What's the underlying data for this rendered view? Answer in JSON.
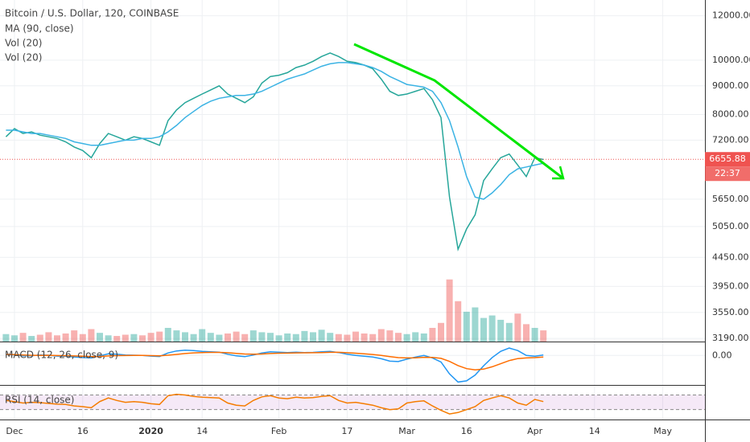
{
  "chart_data": [
    {
      "type": "line",
      "title": "Bitcoin / U.S. Dollar, 120, COINBASE",
      "log": true,
      "grid": true,
      "categories": [
        null,
        "Dec",
        null,
        null,
        null,
        null,
        null,
        null,
        null,
        "16",
        null,
        null,
        null,
        null,
        null,
        null,
        null,
        "2020",
        null,
        null,
        null,
        null,
        null,
        "14",
        null,
        null,
        null,
        null,
        null,
        null,
        null,
        null,
        "Feb",
        null,
        null,
        null,
        null,
        null,
        null,
        null,
        "17",
        null,
        null,
        null,
        null,
        null,
        null,
        "Mar",
        null,
        null,
        null,
        null,
        null,
        null,
        "16",
        null,
        null,
        null,
        null,
        null,
        null,
        null,
        "Apr",
        null,
        null,
        null,
        null,
        null,
        null,
        "14",
        null,
        null,
        null,
        null,
        null,
        null,
        null,
        "May",
        null,
        null,
        null,
        null,
        null
      ],
      "ylim": [
        3150,
        12800
      ],
      "yticks": [
        {
          "value": 12000,
          "label": "12000.00"
        },
        {
          "value": 10000,
          "label": "10000.00"
        },
        {
          "value": 9000,
          "label": "9000.00"
        },
        {
          "value": 8000,
          "label": "8000.00"
        },
        {
          "value": 7200,
          "label": "7200.00"
        },
        {
          "value": 5650,
          "label": "5650.00"
        },
        {
          "value": 5050,
          "label": "5050.00"
        },
        {
          "value": 4450,
          "label": "4450.00"
        },
        {
          "value": 3950,
          "label": "3950.00"
        },
        {
          "value": 3550,
          "label": "3550.00"
        },
        {
          "value": 3190,
          "label": "3190.00"
        }
      ],
      "y2lim": [
        0,
        550
      ],
      "last_price": 6655.88,
      "last_price_color": "#ef5350",
      "countdown": "22:37",
      "extra_legend": [
        "Vol (20)"
      ],
      "series": [
        {
          "color": "#26a69a",
          "values": [
            7300,
            7550,
            7400,
            7450,
            7350,
            7300,
            7250,
            7150,
            7000,
            6900,
            6700,
            7100,
            7400,
            7300,
            7200,
            7300,
            7250,
            7150,
            7050,
            7800,
            8150,
            8400,
            8550,
            8700,
            8850,
            9000,
            8700,
            8550,
            8400,
            8600,
            9100,
            9350,
            9400,
            9500,
            9700,
            9800,
            9950,
            10150,
            10300,
            10150,
            9950,
            9900,
            9800,
            9650,
            9250,
            8800,
            8650,
            8700,
            8800,
            8900,
            8500,
            7900,
            5700,
            4600,
            5000,
            5300,
            6100,
            6400,
            6700,
            6800,
            6500,
            6200,
            6700,
            6650,
            null,
            null,
            null,
            null,
            null,
            null,
            null,
            null,
            null,
            null,
            null,
            null,
            null,
            null,
            null,
            null,
            null,
            null,
            null
          ]
        },
        {
          "name": "MA (90, close)",
          "color": "#3bb3e4",
          "values": [
            7500,
            7500,
            7450,
            7400,
            7400,
            7350,
            7300,
            7250,
            7150,
            7100,
            7050,
            7050,
            7100,
            7150,
            7200,
            7200,
            7250,
            7250,
            7300,
            7450,
            7650,
            7900,
            8100,
            8300,
            8450,
            8550,
            8600,
            8650,
            8650,
            8700,
            8800,
            8950,
            9100,
            9250,
            9350,
            9450,
            9600,
            9750,
            9850,
            9900,
            9900,
            9850,
            9800,
            9700,
            9550,
            9350,
            9200,
            9050,
            9000,
            8950,
            8800,
            8400,
            7800,
            7000,
            6200,
            5700,
            5650,
            5800,
            6000,
            6250,
            6400,
            6450,
            6500,
            6550,
            null,
            null,
            null,
            null,
            null,
            null,
            null,
            null,
            null,
            null,
            null,
            null,
            null,
            null,
            null,
            null,
            null,
            null,
            null
          ]
        },
        {
          "name": "Vol (20)",
          "type": "bar",
          "axis": "y2",
          "up_color": "#26a69a",
          "down_color": "#ef5350",
          "values": [
            12,
            10,
            14,
            9,
            11,
            15,
            10,
            13,
            18,
            12,
            20,
            14,
            10,
            9,
            11,
            12,
            10,
            14,
            16,
            22,
            18,
            15,
            12,
            20,
            14,
            11,
            13,
            16,
            12,
            18,
            15,
            14,
            10,
            13,
            12,
            17,
            15,
            19,
            14,
            12,
            11,
            16,
            13,
            12,
            20,
            18,
            14,
            12,
            15,
            13,
            22,
            30,
            100,
            65,
            48,
            55,
            38,
            42,
            35,
            30,
            45,
            28,
            22,
            18,
            null,
            null,
            null,
            null,
            null,
            null,
            null,
            null,
            null,
            null,
            null,
            null,
            null,
            null,
            null,
            null,
            null,
            null,
            null
          ]
        }
      ]
    },
    {
      "type": "line",
      "title": "MACD (12, 26, close, 9)",
      "grid": true,
      "ylim": [
        -700,
        300
      ],
      "yticks": [
        {
          "value": 0,
          "label": "0.00"
        }
      ],
      "series": [
        {
          "color": "#2196f3",
          "values": [
            20,
            15,
            -10,
            -5,
            10,
            5,
            -15,
            -20,
            -40,
            -50,
            -60,
            -10,
            40,
            30,
            10,
            5,
            0,
            -15,
            -25,
            60,
            110,
            130,
            120,
            100,
            90,
            80,
            30,
            -10,
            -30,
            10,
            60,
            90,
            80,
            70,
            80,
            70,
            75,
            90,
            100,
            70,
            30,
            0,
            -20,
            -40,
            -80,
            -140,
            -150,
            -90,
            -40,
            0,
            -60,
            -160,
            -450,
            -650,
            -620,
            -480,
            -250,
            -50,
            100,
            180,
            120,
            0,
            -20,
            10,
            null,
            null,
            null,
            null,
            null,
            null,
            null,
            null,
            null,
            null,
            null,
            null,
            null,
            null,
            null,
            null,
            null,
            null,
            null
          ]
        },
        {
          "color": "#ff6d00",
          "values": [
            25,
            20,
            10,
            3,
            2,
            3,
            -1,
            -5,
            -12,
            -20,
            -28,
            -25,
            -12,
            -4,
            -1,
            0,
            0,
            -3,
            -8,
            5,
            26,
            47,
            62,
            70,
            74,
            75,
            66,
            51,
            35,
            30,
            36,
            47,
            54,
            57,
            62,
            64,
            66,
            71,
            77,
            76,
            67,
            54,
            39,
            23,
            2,
            -27,
            -52,
            -60,
            -56,
            -45,
            -48,
            -70,
            -146,
            -247,
            -322,
            -353,
            -333,
            -277,
            -202,
            -126,
            -77,
            -61,
            -53,
            -40,
            null,
            null,
            null,
            null,
            null,
            null,
            null,
            null,
            null,
            null,
            null,
            null,
            null,
            null,
            null,
            null,
            null,
            null,
            null
          ]
        }
      ]
    },
    {
      "type": "line",
      "title": "RSI (14, close)",
      "ylim": [
        5,
        91
      ],
      "bands": [
        30,
        70
      ],
      "band_color": "#9c27b0",
      "series": [
        {
          "color": "#f57c00",
          "values": [
            55,
            52,
            48,
            50,
            49,
            47,
            45,
            44,
            40,
            38,
            35,
            52,
            62,
            55,
            50,
            52,
            50,
            46,
            44,
            68,
            72,
            70,
            66,
            64,
            63,
            62,
            48,
            42,
            40,
            55,
            65,
            68,
            62,
            60,
            64,
            62,
            63,
            66,
            68,
            55,
            48,
            50,
            46,
            42,
            35,
            30,
            32,
            48,
            52,
            54,
            40,
            28,
            18,
            22,
            30,
            38,
            55,
            62,
            68,
            62,
            48,
            42,
            58,
            52,
            null,
            null,
            null,
            null,
            null,
            null,
            null,
            null,
            null,
            null,
            null,
            null,
            null,
            null,
            null,
            null,
            null,
            null,
            null
          ]
        }
      ]
    }
  ]
}
